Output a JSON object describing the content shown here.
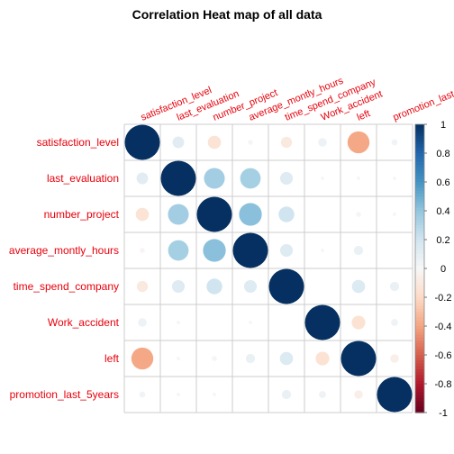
{
  "chart_data": {
    "type": "heatmap",
    "title": "Correlation Heat map of all data",
    "variables": [
      "satisfaction_level",
      "last_evaluation",
      "number_project",
      "average_montly_hours",
      "time_spend_company",
      "Work_accident",
      "left",
      "promotion_last_5years"
    ],
    "values": [
      [
        1.0,
        0.11,
        -0.14,
        -0.02,
        -0.1,
        0.06,
        -0.39,
        0.03
      ],
      [
        0.11,
        1.0,
        0.35,
        0.34,
        0.13,
        -0.01,
        0.01,
        -0.01
      ],
      [
        -0.14,
        0.35,
        1.0,
        0.42,
        0.2,
        0.0,
        0.02,
        -0.01
      ],
      [
        -0.02,
        0.34,
        0.42,
        1.0,
        0.13,
        -0.01,
        0.07,
        0.0
      ],
      [
        -0.1,
        0.13,
        0.2,
        0.13,
        1.0,
        0.0,
        0.14,
        0.07
      ],
      [
        0.06,
        -0.01,
        0.0,
        -0.01,
        0.0,
        1.0,
        -0.15,
        0.04
      ],
      [
        -0.39,
        0.01,
        0.02,
        0.07,
        0.14,
        -0.15,
        1.0,
        -0.06
      ],
      [
        0.03,
        -0.01,
        -0.01,
        0.0,
        0.07,
        0.04,
        -0.06,
        1.0
      ]
    ],
    "colorbar_ticks": [
      "1",
      "0.8",
      "0.6",
      "0.4",
      "0.2",
      "0",
      "-0.2",
      "-0.4",
      "-0.6",
      "-0.8",
      "-1"
    ],
    "colorbar_range": [
      -1,
      1
    ],
    "label_color": "#E8000B",
    "colors": {
      "positive_max": "#053061",
      "neutral": "#F7F7F7",
      "negative_max": "#67001F",
      "grid": "#CCCCCC"
    },
    "grid": true
  }
}
